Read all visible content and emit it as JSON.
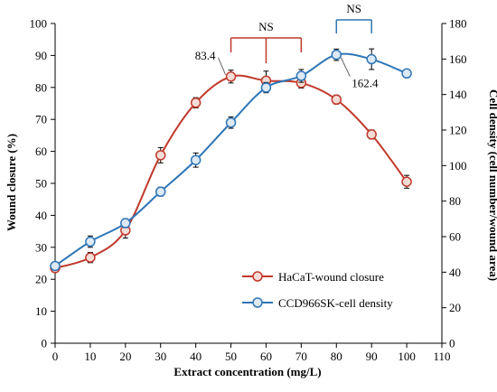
{
  "chart_data": {
    "type": "line",
    "x_label": "Extract concentration (mg/L)",
    "y_label_left": "Wound closure (%)",
    "y_label_right": "Cell density (cell number/wound area)",
    "x_range": [
      0,
      110
    ],
    "x_ticks": [
      0,
      10,
      20,
      30,
      40,
      50,
      60,
      70,
      80,
      90,
      100,
      110
    ],
    "y_left_range": [
      0,
      100
    ],
    "y_left_ticks": [
      0,
      10,
      20,
      30,
      40,
      50,
      60,
      70,
      80,
      90,
      100
    ],
    "y_right_range": [
      0,
      180
    ],
    "y_right_ticks": [
      0,
      20,
      40,
      60,
      80,
      100,
      120,
      140,
      160,
      180
    ],
    "grid": false,
    "legend_position": "lower-right",
    "series": [
      {
        "name": "HaCaT-wound closure",
        "axis": "left",
        "color": "#c0392b",
        "marker_fill": "#f6dcd6",
        "x": [
          0,
          10,
          20,
          30,
          40,
          50,
          60,
          70,
          80,
          90,
          100
        ],
        "y": [
          23.5,
          26.8,
          35.3,
          58.8,
          75.2,
          83.4,
          82.1,
          81.4,
          76.2,
          65.3,
          50.5
        ],
        "err": [
          0.8,
          1.6,
          2.4,
          2.4,
          1.6,
          2.0,
          3.0,
          1.6,
          1.4,
          1.4,
          2.0
        ]
      },
      {
        "name": "CCD966SK-cell density",
        "axis": "right",
        "color": "#2e75b6",
        "marker_fill": "#dde9f5",
        "x": [
          0,
          10,
          20,
          30,
          40,
          50,
          60,
          70,
          80,
          90,
          100
        ],
        "y": [
          43.5,
          57.2,
          67.6,
          85.3,
          103.1,
          124.2,
          143.9,
          150.5,
          162.4,
          159.9,
          151.9
        ],
        "err": [
          1.5,
          3.2,
          2.5,
          2.5,
          4.0,
          3.2,
          2.9,
          3.6,
          3.2,
          5.8,
          1.5
        ]
      }
    ],
    "annotations": [
      {
        "text": "83.4",
        "series": 0,
        "index": 5,
        "side": "left"
      },
      {
        "text": "162.4",
        "series": 1,
        "index": 8,
        "side": "right"
      }
    ],
    "significance": [
      {
        "text": "NS",
        "color": "#c0392b",
        "x_from": 50,
        "x_to": 70,
        "x_mid": 60
      },
      {
        "text": "NS",
        "color": "#2e75b6",
        "x_from": 80,
        "x_to": 90
      }
    ]
  }
}
